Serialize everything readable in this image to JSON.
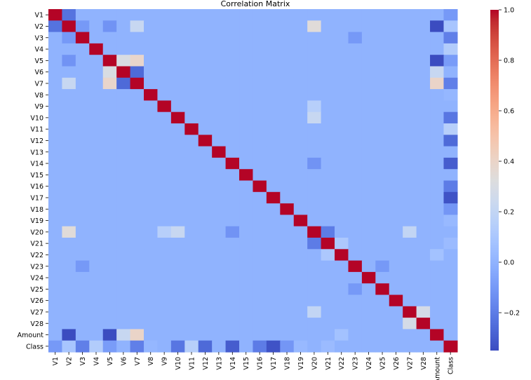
{
  "chart_data": {
    "type": "heatmap",
    "title": "Correlation Matrix",
    "xlabel": "",
    "ylabel": "",
    "labels": [
      "V1",
      "V2",
      "V3",
      "V4",
      "V5",
      "V6",
      "V7",
      "V8",
      "V9",
      "V10",
      "V11",
      "V12",
      "V13",
      "V14",
      "V15",
      "V16",
      "V17",
      "V18",
      "V19",
      "V20",
      "V21",
      "V22",
      "V23",
      "V24",
      "V25",
      "V26",
      "V27",
      "V28",
      "Amount",
      "Class"
    ],
    "colorbar": {
      "min": -0.35,
      "max": 1.0,
      "ticks": [
        -0.2,
        0.0,
        0.2,
        0.4,
        0.6,
        0.8,
        1.0
      ],
      "tick_labels": [
        "−0.2",
        "0.0",
        "0.2",
        "0.4",
        "0.6",
        "0.8",
        "1.0"
      ],
      "colormap": "coolwarm"
    },
    "grid": false,
    "off_diagonal_default": 0.0,
    "correlations": [
      {
        "a": "V1",
        "b": "V2",
        "value": -0.23
      },
      {
        "a": "V2",
        "b": "V3",
        "value": -0.1
      },
      {
        "a": "V2",
        "b": "V7",
        "value": 0.22
      },
      {
        "a": "V2",
        "b": "V20",
        "value": 0.34
      },
      {
        "a": "V2",
        "b": "V5",
        "value": -0.12
      },
      {
        "a": "V2",
        "b": "Amount",
        "value": -0.53
      },
      {
        "a": "V2",
        "b": "Class",
        "value": 0.09
      },
      {
        "a": "V3",
        "b": "Class",
        "value": -0.19
      },
      {
        "a": "V3",
        "b": "V23",
        "value": -0.1
      },
      {
        "a": "V5",
        "b": "V6",
        "value": 0.3
      },
      {
        "a": "V5",
        "b": "V7",
        "value": 0.39
      },
      {
        "a": "V5",
        "b": "Amount",
        "value": -0.39
      },
      {
        "a": "V5",
        "b": "Class",
        "value": -0.09
      },
      {
        "a": "V6",
        "b": "V7",
        "value": -0.26
      },
      {
        "a": "V6",
        "b": "Amount",
        "value": 0.22
      },
      {
        "a": "V7",
        "b": "Class",
        "value": -0.19
      },
      {
        "a": "V7",
        "b": "Amount",
        "value": 0.4
      },
      {
        "a": "V9",
        "b": "V20",
        "value": 0.15
      },
      {
        "a": "V10",
        "b": "V20",
        "value": 0.22
      },
      {
        "a": "V10",
        "b": "Class",
        "value": -0.22
      },
      {
        "a": "V11",
        "b": "Class",
        "value": 0.15
      },
      {
        "a": "V12",
        "b": "Class",
        "value": -0.26
      },
      {
        "a": "V14",
        "b": "Class",
        "value": -0.3
      },
      {
        "a": "V14",
        "b": "V20",
        "value": -0.12
      },
      {
        "a": "V16",
        "b": "Class",
        "value": -0.2
      },
      {
        "a": "V17",
        "b": "Class",
        "value": -0.33
      },
      {
        "a": "V18",
        "b": "Class",
        "value": -0.11
      },
      {
        "a": "V20",
        "b": "V21",
        "value": -0.2
      },
      {
        "a": "V20",
        "b": "V27",
        "value": 0.2
      },
      {
        "a": "V21",
        "b": "V22",
        "value": 0.11
      },
      {
        "a": "V22",
        "b": "Amount",
        "value": 0.07
      },
      {
        "a": "V23",
        "b": "V25",
        "value": -0.1
      },
      {
        "a": "V27",
        "b": "V28",
        "value": 0.28
      },
      {
        "a": "V4",
        "b": "Class",
        "value": 0.13
      },
      {
        "a": "V1",
        "b": "Class",
        "value": -0.1
      },
      {
        "a": "V8",
        "b": "Class",
        "value": 0.02
      },
      {
        "a": "V19",
        "b": "Class",
        "value": 0.03
      },
      {
        "a": "V21",
        "b": "Class",
        "value": 0.04
      }
    ]
  }
}
